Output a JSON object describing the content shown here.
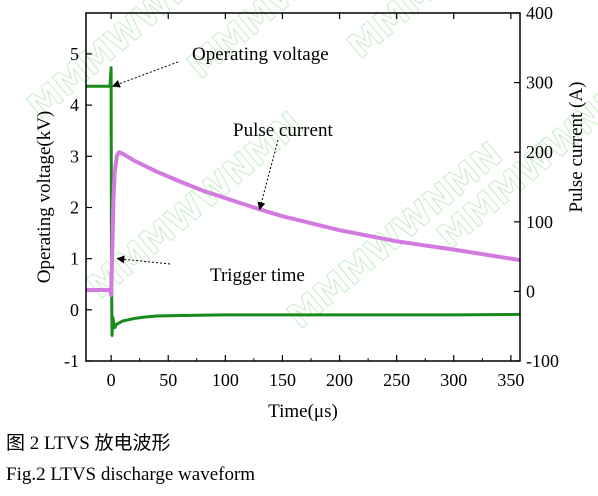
{
  "chart_data": {
    "type": "line",
    "xlabel": "Time(μs)",
    "ylabel_left": "Operating voltage(kV)",
    "ylabel_right": "Pulse current (A)",
    "xlim": [
      -22,
      358
    ],
    "ylim_left": [
      -1,
      5.8
    ],
    "ylim_right": [
      -100,
      400
    ],
    "x_ticks": [
      0,
      50,
      100,
      150,
      200,
      250,
      300,
      350
    ],
    "y_left_ticks": [
      -1,
      0,
      1,
      2,
      3,
      4,
      5
    ],
    "y_right_ticks": [
      -100,
      0,
      100,
      200,
      300,
      400
    ],
    "grid": false,
    "series": [
      {
        "name": "Operating voltage",
        "axis": "left",
        "color": "#1a8a1a",
        "x": [
          -22,
          -1,
          0,
          0.2,
          0.4,
          0.8,
          1.5,
          3,
          5,
          10,
          20,
          30,
          40,
          60,
          100,
          200,
          300,
          358
        ],
        "y": [
          4.37,
          4.37,
          4.73,
          1.5,
          0.6,
          -0.5,
          -0.15,
          -0.35,
          -0.28,
          -0.22,
          -0.17,
          -0.14,
          -0.12,
          -0.11,
          -0.1,
          -0.1,
          -0.1,
          -0.09
        ]
      },
      {
        "name": "Pulse current",
        "axis": "right",
        "color": "#d27ae0",
        "x": [
          -22,
          -1,
          0,
          1,
          2,
          3,
          5,
          7,
          10,
          20,
          40,
          60,
          80,
          100,
          130,
          150,
          200,
          250,
          300,
          358
        ],
        "y": [
          2,
          2,
          -5,
          60,
          130,
          170,
          195,
          200,
          198,
          188,
          172,
          158,
          145,
          134,
          118,
          108,
          88,
          72,
          60,
          45
        ]
      }
    ],
    "annotations": [
      {
        "text": "Operating voltage",
        "target": [
          -2,
          4.37
        ],
        "target_axis": "left"
      },
      {
        "text": "Pulse current",
        "target": [
          130,
          118
        ],
        "target_axis": "right"
      },
      {
        "text": "Trigger time",
        "target": [
          2,
          1.0
        ],
        "target_axis": "left"
      }
    ]
  },
  "captions": {
    "zh": "图 2 LTVS 放电波形",
    "en": "Fig.2 LTVS discharge waveform"
  },
  "watermark_text": "MMMWWNMN"
}
